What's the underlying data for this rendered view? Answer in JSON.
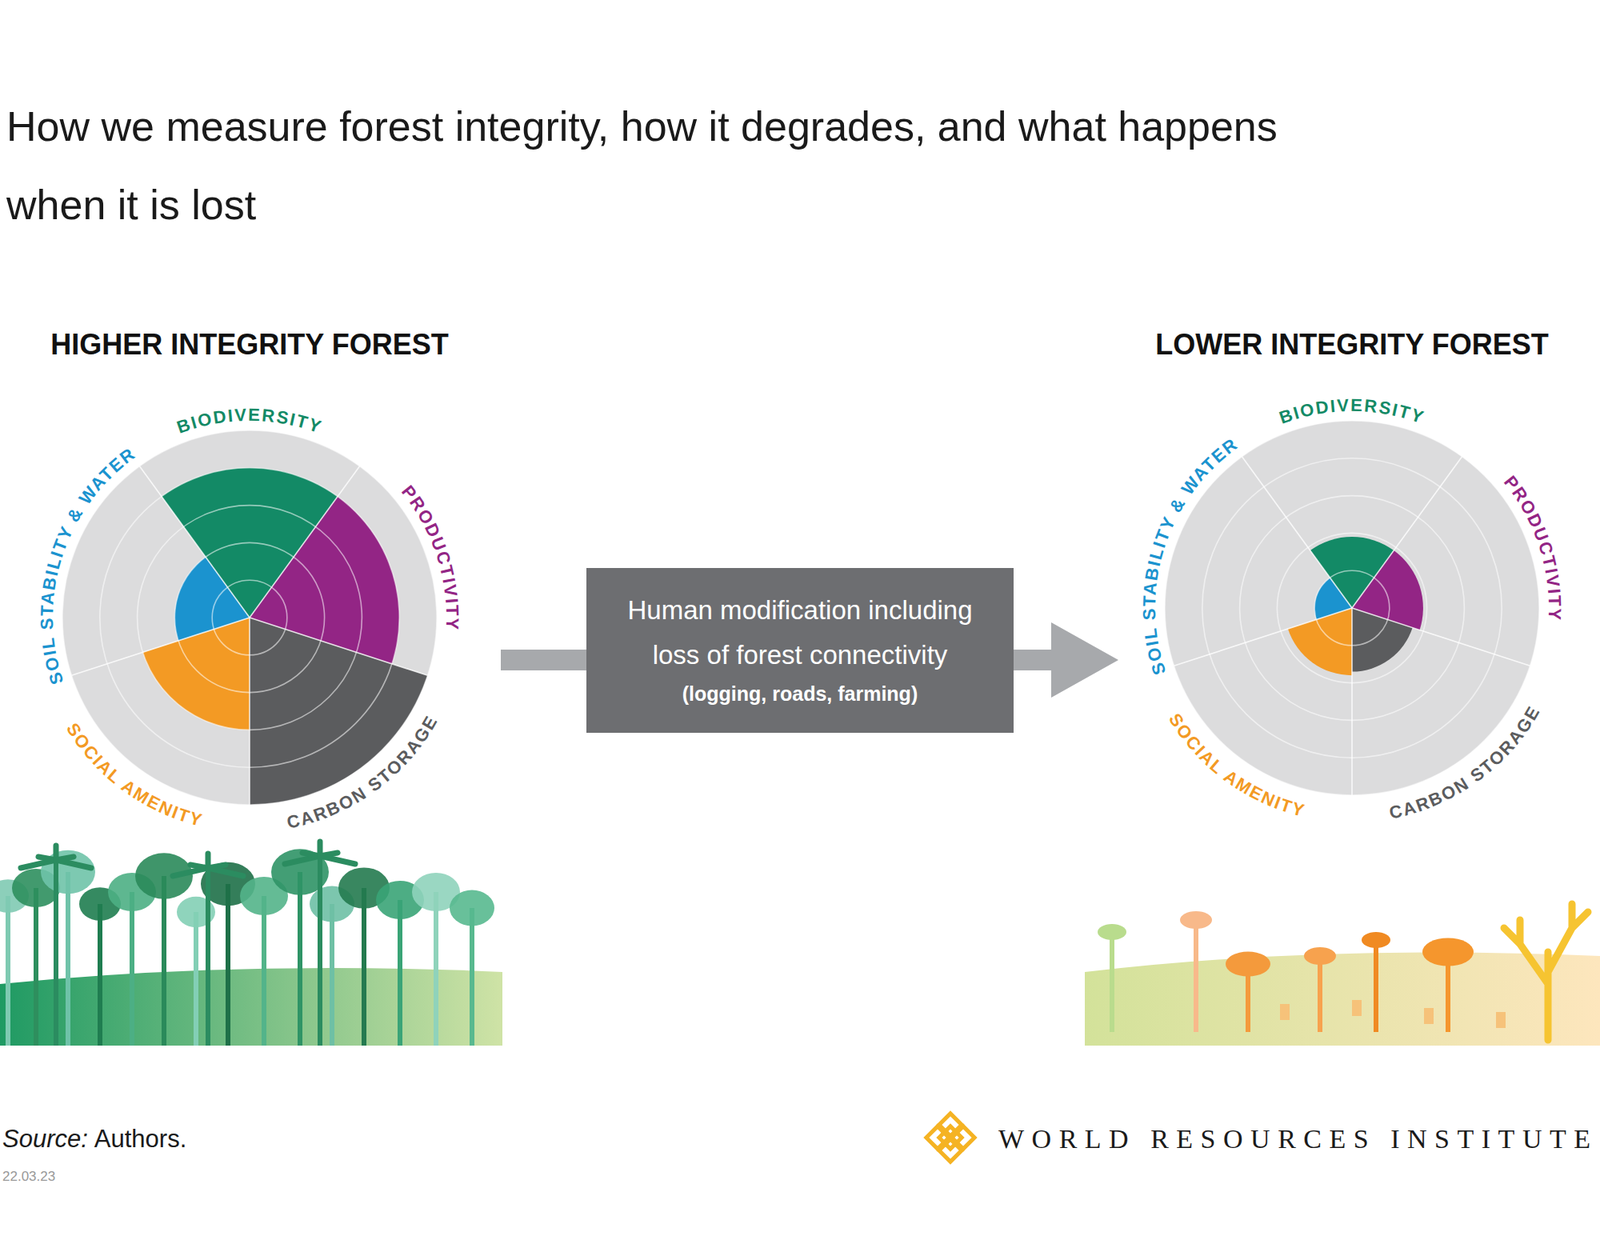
{
  "title_lines": [
    "How we measure forest integrity, how it degrades, and what happens",
    "when it is lost"
  ],
  "arrow": {
    "lines": [
      "Human modification including",
      "loss of forest connectivity"
    ],
    "note": "(logging, roads, farming)"
  },
  "source": {
    "label": "Source:",
    "text": "Authors."
  },
  "date": "22.03.23",
  "logo": "WORLD RESOURCES INSTITUTE",
  "chart_data": [
    {
      "type": "polar_area",
      "title": "HIGHER INTEGRITY FOREST",
      "categories": [
        "BIODIVERSITY",
        "PRODUCTIVITY",
        "CARBON STORAGE",
        "SOCIAL AMENITY",
        "SOIL STABILITY & WATER"
      ],
      "values": [
        4,
        4,
        5,
        3,
        2
      ],
      "colors": [
        "#138a66",
        "#932585",
        "#5b5c5e",
        "#f39a24",
        "#1b93cf"
      ],
      "ylim": [
        0,
        5
      ],
      "yticks": [
        1,
        2,
        3,
        4,
        5
      ],
      "grid": true,
      "tick_labels": false
    },
    {
      "type": "polar_area",
      "title": "LOWER INTEGRITY FOREST",
      "categories": [
        "BIODIVERSITY",
        "PRODUCTIVITY",
        "CARBON STORAGE",
        "SOCIAL AMENITY",
        "SOIL STABILITY & WATER"
      ],
      "values": [
        1.9,
        1.9,
        1.7,
        1.8,
        1.0
      ],
      "colors": [
        "#138a66",
        "#932585",
        "#5b5c5e",
        "#f39a24",
        "#1b93cf"
      ],
      "ylim": [
        0,
        5
      ],
      "yticks": [
        1,
        2,
        3,
        4,
        5
      ],
      "grid": true,
      "tick_labels": false
    }
  ]
}
